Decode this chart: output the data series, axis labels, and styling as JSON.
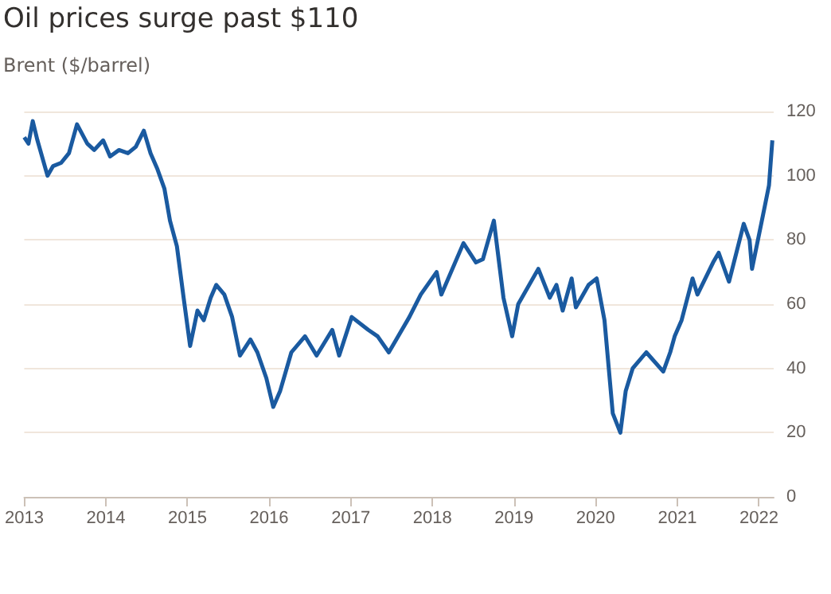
{
  "chart_data": {
    "type": "line",
    "title": "Oil prices surge past $110",
    "subtitle": "Brent ($/barrel)",
    "x": [
      "2013-01-01",
      "2013-01-20",
      "2013-02-08",
      "2013-03-01",
      "2013-04-15",
      "2013-05-10",
      "2013-06-15",
      "2013-07-20",
      "2013-08-25",
      "2013-10-10",
      "2013-11-10",
      "2013-12-20",
      "2014-01-20",
      "2014-03-01",
      "2014-04-10",
      "2014-05-15",
      "2014-06-20",
      "2014-07-20",
      "2014-08-20",
      "2014-09-20",
      "2014-10-15",
      "2014-11-15",
      "2014-12-15",
      "2015-01-13",
      "2015-02-15",
      "2015-03-15",
      "2015-04-15",
      "2015-05-10",
      "2015-06-15",
      "2015-07-20",
      "2015-08-24",
      "2015-10-10",
      "2015-11-10",
      "2015-12-20",
      "2016-01-20",
      "2016-02-20",
      "2016-04-10",
      "2016-06-10",
      "2016-08-01",
      "2016-10-10",
      "2016-11-10",
      "2017-01-05",
      "2017-03-20",
      "2017-05-01",
      "2017-06-20",
      "2017-07-15",
      "2017-09-20",
      "2017-11-10",
      "2018-01-20",
      "2018-02-10",
      "2018-05-20",
      "2018-07-15",
      "2018-08-15",
      "2018-10-03",
      "2018-11-15",
      "2018-12-24",
      "2019-01-20",
      "2019-04-20",
      "2019-06-10",
      "2019-07-10",
      "2019-08-07",
      "2019-09-16",
      "2019-10-05",
      "2019-12-01",
      "2020-01-06",
      "2020-02-10",
      "2020-03-18",
      "2020-04-21",
      "2020-05-15",
      "2020-06-15",
      "2020-08-15",
      "2020-10-30",
      "2020-11-30",
      "2020-12-20",
      "2021-01-20",
      "2021-03-10",
      "2021-04-01",
      "2021-06-10",
      "2021-07-05",
      "2021-08-20",
      "2021-10-25",
      "2021-11-20",
      "2021-12-01",
      "2022-01-20",
      "2022-02-15",
      "2022-03-02"
    ],
    "values": [
      112,
      110,
      117,
      111,
      100,
      103,
      104,
      107,
      116,
      110,
      108,
      111,
      106,
      108,
      107,
      109,
      114,
      107,
      102,
      96,
      86,
      78,
      62,
      47,
      58,
      55,
      62,
      66,
      63,
      56,
      44,
      49,
      45,
      37,
      28,
      33,
      45,
      50,
      44,
      52,
      44,
      56,
      52,
      50,
      45,
      48,
      56,
      63,
      70,
      63,
      79,
      73,
      74,
      86,
      62,
      50,
      60,
      71,
      62,
      66,
      58,
      68,
      59,
      66,
      68,
      55,
      26,
      20,
      33,
      40,
      45,
      39,
      45,
      50,
      55,
      68,
      63,
      73,
      76,
      67,
      85,
      80,
      71,
      88,
      97,
      111
    ],
    "color": "#1a5aa0",
    "xlim": [
      "2013-01-01",
      "2022-03-08"
    ],
    "xticks": [
      "2013",
      "2014",
      "2015",
      "2016",
      "2017",
      "2018",
      "2019",
      "2020",
      "2021",
      "2022"
    ],
    "ylim": [
      0,
      120
    ],
    "yticks": [
      0,
      20,
      40,
      60,
      80,
      100,
      120
    ],
    "grid": "y",
    "marker": "none",
    "line_style": "solid"
  }
}
